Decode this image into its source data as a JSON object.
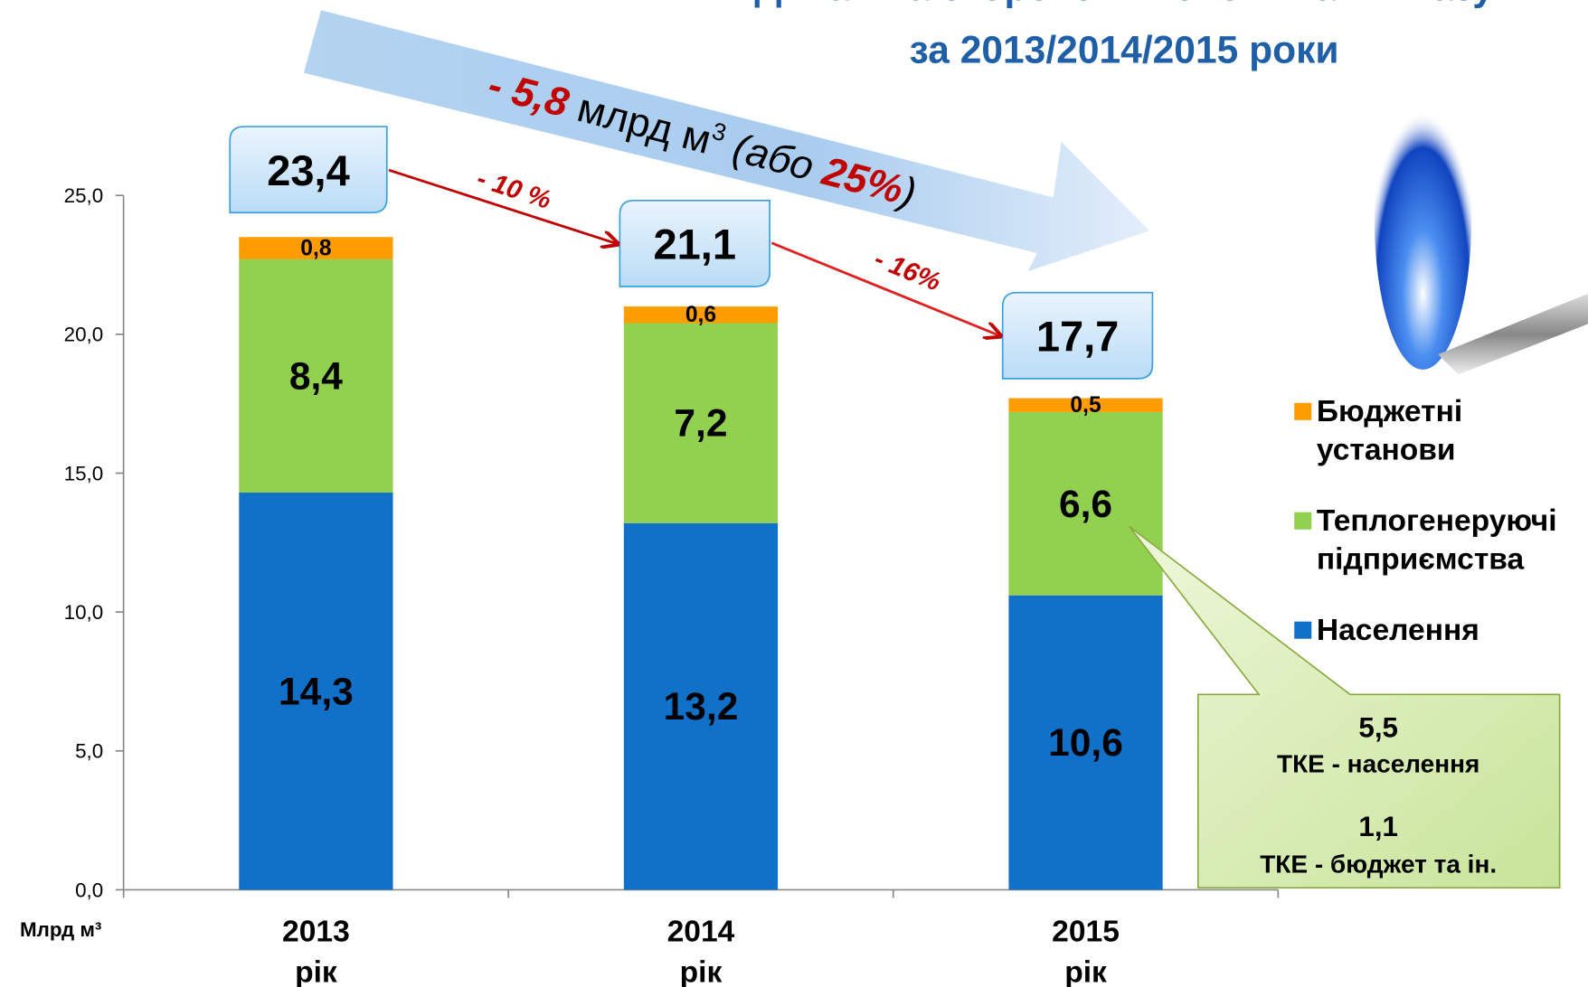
{
  "chart_data": {
    "type": "stacked-bar",
    "title": [
      "Динаміка скорочення споживання газу",
      "за 2013/2014/2015 роки"
    ],
    "categories": [
      "2013 рік",
      "2014 рік",
      "2015 рік"
    ],
    "y_label": "Млрд м³",
    "ylim": [
      0,
      25
    ],
    "yticks": [
      {
        "value": 0,
        "label": "0,0"
      },
      {
        "value": 5,
        "label": "5,0"
      },
      {
        "value": 10,
        "label": "10,0"
      },
      {
        "value": 15,
        "label": "15,0"
      },
      {
        "value": 20,
        "label": "20,0"
      },
      {
        "value": 25,
        "label": "25,0"
      }
    ],
    "series": [
      {
        "name": "Населення",
        "color": "#1170c8",
        "values": [
          14.3,
          13.2,
          10.6
        ],
        "value_labels": [
          "14,3",
          "13,2",
          "10,6"
        ]
      },
      {
        "name": "Теплогенеруючі підприємства",
        "color": "#92d050",
        "values": [
          8.4,
          7.2,
          6.6
        ],
        "value_labels": [
          "8,4",
          "7,2",
          "6,6"
        ]
      },
      {
        "name": "Бюджетні установи",
        "color": "#ff9c00",
        "values": [
          0.8,
          0.6,
          0.5
        ],
        "value_labels": [
          "0,8",
          "0,6",
          "0,5"
        ]
      }
    ],
    "totals": [
      23.4,
      21.1,
      17.7
    ],
    "total_labels": [
      "23,4",
      "21,1",
      "17,7"
    ],
    "changes": [
      "- 10 %",
      "- 16%"
    ],
    "overall_change": [
      "- 5,8",
      " млрд м",
      "3",
      " (або ",
      "25%",
      ")"
    ],
    "callout": [
      "5,5",
      "ТКЕ - населення",
      "1,1",
      "ТКЕ - бюджет та ін."
    ]
  }
}
